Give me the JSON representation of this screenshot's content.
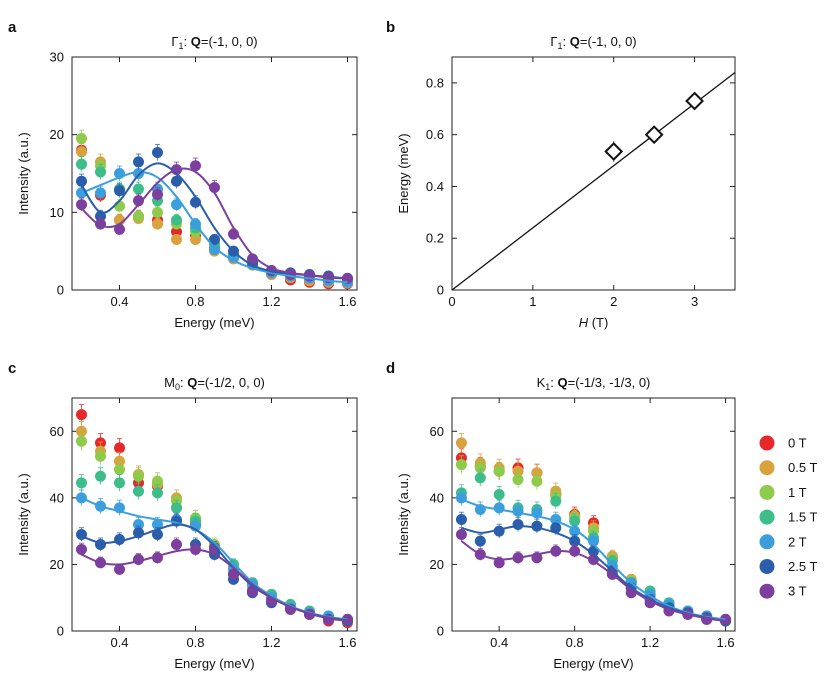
{
  "legend": {
    "fields": [
      "0 T",
      "0.5 T",
      "1 T",
      "1.5 T",
      "2 T",
      "2.5 T",
      "3 T"
    ],
    "colors": [
      "#e8272a",
      "#d9a23f",
      "#8fcb4a",
      "#3dbd8a",
      "#3a9fdc",
      "#2b5eaa",
      "#7c3f9e"
    ]
  },
  "chart_data": [
    {
      "id": "a",
      "letter": "a",
      "type": "scatter",
      "title": {
        "sym": "Γ",
        "sub": "1",
        "mid": ": ",
        "bold": "Q",
        "rest": "=(-1, 0, 0)"
      },
      "xlabel": "Energy (meV)",
      "ylabel": "Intensity (a.u.)",
      "xlim": [
        0.15,
        1.65
      ],
      "ylim": [
        0,
        30
      ],
      "xticks": [
        0.4,
        0.8,
        1.2,
        1.6
      ],
      "xtick_labels": [
        "0.4",
        "0.8",
        "1.2",
        "1.6"
      ],
      "yticks": [
        0,
        10,
        20,
        30
      ],
      "ytick_labels": [
        "0",
        "10",
        "20",
        "30"
      ],
      "x": [
        0.2,
        0.3,
        0.4,
        0.5,
        0.6,
        0.7,
        0.8,
        0.9,
        1.0,
        1.1,
        1.2,
        1.3,
        1.4,
        1.5,
        1.6
      ],
      "series": [
        {
          "name": "0 T",
          "values": [
            18,
            12.2,
            9,
            9.5,
            9,
            7.5,
            7,
            5.5,
            4.5,
            3.5,
            2,
            1.3,
            1,
            0.8,
            0.8
          ]
        },
        {
          "name": "0.5 T",
          "values": [
            17.8,
            16.5,
            9,
            9.2,
            8.5,
            6.5,
            6.5,
            5,
            4,
            3.2,
            2,
            1.6,
            1.2,
            1,
            0.9
          ]
        },
        {
          "name": "1 T",
          "values": [
            19.5,
            16,
            10.8,
            9.5,
            10,
            8.5,
            7.5,
            5.8,
            4.2,
            3.5,
            2.2,
            1.8,
            1.5,
            1.2,
            1
          ]
        },
        {
          "name": "1.5 T",
          "values": [
            16.2,
            15.2,
            13,
            13,
            11.5,
            9,
            8,
            6,
            4.5,
            3.5,
            2.5,
            2,
            1.6,
            1.3,
            1.1
          ]
        },
        {
          "name": "2 T",
          "values": [
            12.5,
            12.5,
            15,
            15,
            13,
            11,
            8.5,
            5.2,
            4.2,
            3.3,
            2.2,
            1.8,
            1.5,
            1.2,
            1
          ]
        },
        {
          "name": "2.5 T",
          "values": [
            14,
            9.5,
            12.8,
            16.5,
            17.7,
            14,
            11.3,
            6.5,
            5,
            3.5,
            2.5,
            2.2,
            2,
            1.8,
            1.5
          ]
        },
        {
          "name": "3 T",
          "values": [
            11,
            8.5,
            7.8,
            11.5,
            12.3,
            15.5,
            16,
            13.2,
            7.2,
            4,
            2.5,
            2,
            1.8,
            1.6,
            1.5
          ]
        }
      ],
      "fits": [
        {
          "name": "2 T",
          "color": "#3a9fdc",
          "x": [
            0.2,
            0.3,
            0.4,
            0.5,
            0.6,
            0.7,
            0.8,
            0.9,
            1.0,
            1.1,
            1.2,
            1.3,
            1.4,
            1.5,
            1.6
          ],
          "y": [
            12.5,
            13.5,
            14.5,
            15.2,
            14.5,
            12,
            8.5,
            5.5,
            3.8,
            2.8,
            2.2,
            1.8,
            1.5,
            1.2,
            1
          ]
        },
        {
          "name": "2.5 T",
          "color": "#2b5eaa",
          "x": [
            0.2,
            0.3,
            0.4,
            0.5,
            0.6,
            0.7,
            0.8,
            0.9,
            1.0,
            1.1,
            1.2,
            1.3,
            1.4,
            1.5,
            1.6
          ],
          "y": [
            13.5,
            10,
            11.5,
            14.8,
            16.3,
            15,
            12,
            8,
            5,
            3.2,
            2.4,
            2.1,
            1.9,
            1.7,
            1.5
          ]
        },
        {
          "name": "3 T",
          "color": "#7c3f9e",
          "x": [
            0.2,
            0.3,
            0.4,
            0.5,
            0.6,
            0.7,
            0.8,
            0.9,
            1.0,
            1.1,
            1.2,
            1.3,
            1.4,
            1.5,
            1.6
          ],
          "y": [
            10.5,
            8.3,
            8.5,
            11,
            13.8,
            15.5,
            15.2,
            12.5,
            8,
            4.5,
            2.8,
            2.2,
            1.9,
            1.6,
            1.5
          ]
        }
      ]
    },
    {
      "id": "b",
      "letter": "b",
      "type": "line",
      "title": {
        "sym": "Γ",
        "sub": "1",
        "mid": ": ",
        "bold": "Q",
        "rest": "=(-1, 0, 0)"
      },
      "xlabel_italic": "H",
      "xlabel_rest": " (T)",
      "ylabel": "Energy (meV)",
      "xlim": [
        0,
        3.5
      ],
      "ylim": [
        0,
        0.9
      ],
      "xticks": [
        0,
        1,
        2,
        3
      ],
      "xtick_labels": [
        "0",
        "1",
        "2",
        "3"
      ],
      "yticks": [
        0,
        0.2,
        0.4,
        0.6,
        0.8
      ],
      "ytick_labels": [
        "0",
        "0.2",
        "0.4",
        "0.6",
        "0.8"
      ],
      "points": {
        "x": [
          2,
          2.5,
          3
        ],
        "y": [
          0.535,
          0.6,
          0.73
        ],
        "err": [
          0.04,
          0.02,
          0.02
        ]
      },
      "line": {
        "x": [
          0,
          3.5
        ],
        "y": [
          0,
          0.84
        ]
      }
    },
    {
      "id": "c",
      "letter": "c",
      "type": "scatter",
      "title": {
        "sym": "M",
        "sub": "0",
        "mid": ": ",
        "bold": "Q",
        "rest": "=(-1/2, 0, 0)"
      },
      "xlabel": "Energy (meV)",
      "ylabel": "Intensity (a.u.)",
      "xlim": [
        0.15,
        1.65
      ],
      "ylim": [
        0,
        70
      ],
      "xticks": [
        0.4,
        0.8,
        1.2,
        1.6
      ],
      "xtick_labels": [
        "0.4",
        "0.8",
        "1.2",
        "1.6"
      ],
      "yticks": [
        0,
        20,
        40,
        60
      ],
      "ytick_labels": [
        "0",
        "20",
        "40",
        "60"
      ],
      "x": [
        0.2,
        0.3,
        0.4,
        0.5,
        0.6,
        0.7,
        0.8,
        0.9,
        1.0,
        1.1,
        1.2,
        1.3,
        1.4,
        1.5,
        1.6
      ],
      "series": [
        {
          "name": "0 T",
          "values": [
            65,
            56.5,
            55,
            44.5,
            43.5,
            37,
            32,
            24,
            17,
            12,
            9,
            7,
            5,
            3,
            2.5
          ]
        },
        {
          "name": "0.5 T",
          "values": [
            60,
            54,
            51,
            47,
            44,
            40,
            33,
            25,
            17.5,
            13,
            10,
            7,
            5,
            3.5,
            3
          ]
        },
        {
          "name": "1 T",
          "values": [
            57,
            52.5,
            48.5,
            46.5,
            45,
            39,
            34,
            26,
            19,
            14,
            10.5,
            7.5,
            5.5,
            4,
            3
          ]
        },
        {
          "name": "1.5 T",
          "values": [
            44.5,
            46.5,
            44.5,
            42,
            41.5,
            37,
            33,
            25,
            20,
            14.5,
            11,
            8,
            6,
            4.5,
            3.5
          ]
        },
        {
          "name": "2 T",
          "values": [
            40,
            37.5,
            37,
            32,
            32,
            33.5,
            31.5,
            24.5,
            18.5,
            14,
            10,
            7,
            5.5,
            4.5,
            3.5
          ]
        },
        {
          "name": "2.5 T",
          "values": [
            29,
            26,
            27.5,
            29.5,
            29,
            33,
            26,
            23,
            15.5,
            11.5,
            8.5,
            6.5,
            5,
            3.5,
            3
          ]
        },
        {
          "name": "3 T",
          "values": [
            24.5,
            20.5,
            18.5,
            21.5,
            22,
            26,
            24.5,
            25,
            17,
            12,
            9,
            6.5,
            5,
            3.5,
            3.5
          ]
        }
      ],
      "fits": [
        {
          "name": "2 T",
          "color": "#3a9fdc",
          "x": [
            0.2,
            0.3,
            0.4,
            0.5,
            0.6,
            0.7,
            0.8,
            0.9,
            1.0,
            1.1,
            1.2,
            1.3,
            1.4,
            1.5,
            1.6
          ],
          "y": [
            40,
            37.5,
            36,
            34.5,
            33.5,
            32.5,
            30.5,
            26.5,
            20.5,
            14.5,
            10.5,
            7.5,
            5.5,
            4.2,
            3.5
          ]
        },
        {
          "name": "2.5 T",
          "color": "#2b5eaa",
          "x": [
            0.2,
            0.3,
            0.4,
            0.5,
            0.6,
            0.7,
            0.8,
            0.9,
            1.0,
            1.1,
            1.2,
            1.3,
            1.4,
            1.5,
            1.6
          ],
          "y": [
            28.5,
            26.5,
            27,
            28.5,
            30.5,
            32,
            30.5,
            25.5,
            19,
            13.5,
            10,
            7.2,
            5.3,
            4,
            3.2
          ]
        },
        {
          "name": "3 T",
          "color": "#7c3f9e",
          "x": [
            0.2,
            0.3,
            0.4,
            0.5,
            0.6,
            0.7,
            0.8,
            0.9,
            1.0,
            1.1,
            1.2,
            1.3,
            1.4,
            1.5,
            1.6
          ],
          "y": [
            23,
            20.5,
            20,
            21,
            22.5,
            24,
            24.5,
            23,
            19,
            14,
            10,
            7.2,
            5.2,
            3.8,
            3
          ]
        }
      ]
    },
    {
      "id": "d",
      "letter": "d",
      "type": "scatter",
      "title": {
        "sym": "K",
        "sub": "1",
        "mid": ": ",
        "bold": "Q",
        "rest": "=(-1/3, -1/3, 0)"
      },
      "xlabel": "Energy (meV)",
      "ylabel": "Intensity (a.u.)",
      "xlim": [
        0.15,
        1.65
      ],
      "ylim": [
        0,
        70
      ],
      "xticks": [
        0.4,
        0.8,
        1.2,
        1.6
      ],
      "xtick_labels": [
        "0.4",
        "0.8",
        "1.2",
        "1.6"
      ],
      "yticks": [
        0,
        20,
        40,
        60
      ],
      "ytick_labels": [
        "0",
        "20",
        "40",
        "60"
      ],
      "x": [
        0.2,
        0.3,
        0.4,
        0.5,
        0.6,
        0.7,
        0.8,
        0.9,
        1.0,
        1.1,
        1.2,
        1.3,
        1.4,
        1.5,
        1.6
      ],
      "series": [
        {
          "name": "0 T",
          "values": [
            52,
            49.5,
            48,
            49,
            47.5,
            41,
            35,
            32.5,
            22,
            15,
            10.5,
            7.5,
            5,
            3.5,
            3
          ]
        },
        {
          "name": "0.5 T",
          "values": [
            56.5,
            50.5,
            49,
            48,
            47.5,
            42,
            34.5,
            31,
            22.5,
            15.5,
            11,
            8,
            5.5,
            4,
            3
          ]
        },
        {
          "name": "1 T",
          "values": [
            50,
            49,
            48,
            45.5,
            45,
            40.5,
            34,
            30,
            21.5,
            15,
            11,
            8,
            5.5,
            4,
            3
          ]
        },
        {
          "name": "1.5 T",
          "values": [
            41.5,
            46,
            41,
            37,
            36.5,
            39,
            33,
            28,
            21,
            14.5,
            12,
            8.5,
            6,
            4.5,
            3.5
          ]
        },
        {
          "name": "2 T",
          "values": [
            40,
            36.5,
            37,
            36,
            35.5,
            33.5,
            30,
            27,
            19.5,
            14.5,
            11,
            8,
            6,
            4.5,
            3.5
          ]
        },
        {
          "name": "2.5 T",
          "values": [
            33.5,
            27,
            30,
            32,
            31.5,
            31,
            27,
            24,
            18,
            13,
            9.5,
            7,
            5.5,
            4,
            3
          ]
        },
        {
          "name": "3 T",
          "values": [
            29,
            23,
            20.5,
            22,
            22,
            24,
            24,
            21.5,
            17,
            11.5,
            8.5,
            6,
            5,
            3.5,
            3.5
          ]
        }
      ],
      "fits": [
        {
          "name": "2 T",
          "color": "#3a9fdc",
          "x": [
            0.2,
            0.3,
            0.4,
            0.5,
            0.6,
            0.7,
            0.8,
            0.9,
            1.0,
            1.1,
            1.2,
            1.3,
            1.4,
            1.5,
            1.6
          ],
          "y": [
            39.5,
            37.5,
            36.5,
            35.5,
            34.5,
            33,
            30.5,
            26,
            20,
            14.5,
            10.5,
            7.5,
            5.5,
            4.2,
            3.5
          ]
        },
        {
          "name": "2.5 T",
          "color": "#2b5eaa",
          "x": [
            0.2,
            0.3,
            0.4,
            0.5,
            0.6,
            0.7,
            0.8,
            0.9,
            1.0,
            1.1,
            1.2,
            1.3,
            1.4,
            1.5,
            1.6
          ],
          "y": [
            31,
            29.5,
            30.5,
            31.5,
            31,
            29.5,
            27,
            23,
            18,
            13,
            9.5,
            7,
            5.2,
            4,
            3
          ]
        },
        {
          "name": "3 T",
          "color": "#7c3f9e",
          "x": [
            0.2,
            0.3,
            0.4,
            0.5,
            0.6,
            0.7,
            0.8,
            0.9,
            1.0,
            1.1,
            1.2,
            1.3,
            1.4,
            1.5,
            1.6
          ],
          "y": [
            27,
            23,
            21.5,
            22,
            23,
            24,
            23.5,
            21,
            17,
            12.5,
            9,
            6.5,
            5,
            3.8,
            3
          ]
        }
      ]
    }
  ]
}
